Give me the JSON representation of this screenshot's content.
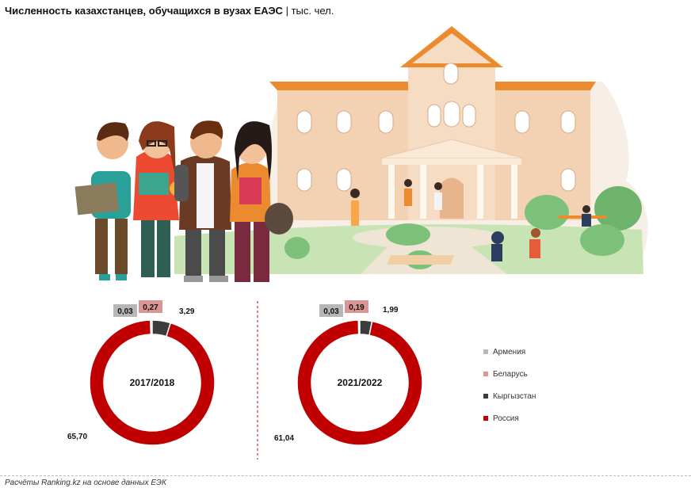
{
  "header": {
    "title_bold": "Численность казахстанцев, обучащихся в вузах ЕАЭС",
    "title_sep": "|",
    "title_unit": "тыс. чел."
  },
  "footer": {
    "source": "Расчёты Ranking.kz на основе данных ЕЭК"
  },
  "colors": {
    "armenia": "#b7b7b7",
    "belarus": "#d99694",
    "kyrgyzstan": "#3c3c3c",
    "russia": "#c00000"
  },
  "chart_data": [
    {
      "type": "pie",
      "center_label": "2017/2018",
      "series": [
        {
          "name": "Армения",
          "value": 0.03,
          "label": "0,03"
        },
        {
          "name": "Беларусь",
          "value": 0.27,
          "label": "0,27"
        },
        {
          "name": "Кыргызстан",
          "value": 3.29,
          "label": "3,29"
        },
        {
          "name": "Россия",
          "value": 65.7,
          "label": "65,70"
        }
      ]
    },
    {
      "type": "pie",
      "center_label": "2021/2022",
      "series": [
        {
          "name": "Армения",
          "value": 0.03,
          "label": "0,03"
        },
        {
          "name": "Беларусь",
          "value": 0.19,
          "label": "0,19"
        },
        {
          "name": "Кыргызстан",
          "value": 1.99,
          "label": "1,99"
        },
        {
          "name": "Россия",
          "value": 61.04,
          "label": "61,04"
        }
      ]
    }
  ],
  "legend": [
    {
      "label": "Армения",
      "color": "#b7b7b7"
    },
    {
      "label": "Беларусь",
      "color": "#d99694"
    },
    {
      "label": "Кыргызстан",
      "color": "#3c3c3c"
    },
    {
      "label": "Россия",
      "color": "#c00000"
    }
  ]
}
